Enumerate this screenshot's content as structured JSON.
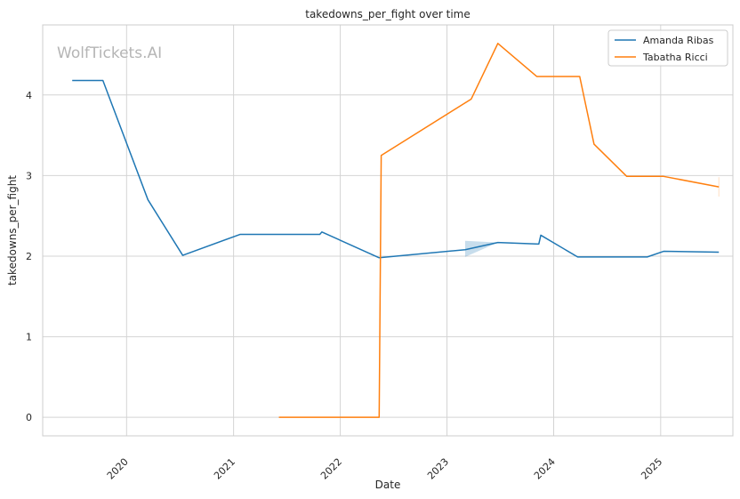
{
  "chart_data": {
    "type": "line",
    "title": "takedowns_per_fight over time",
    "xlabel": "Date",
    "ylabel": "takedowns_per_fight",
    "watermark": "WolfTickets.AI",
    "x_ticks": [
      "2020",
      "2021",
      "2022",
      "2023",
      "2024",
      "2025"
    ],
    "y_ticks": [
      0,
      1,
      2,
      3,
      4
    ],
    "xlim": [
      "2019-03-20",
      "2025-09-05"
    ],
    "ylim": [
      -0.23,
      4.87
    ],
    "grid": true,
    "legend_position": "top-right",
    "series": [
      {
        "name": "Amanda Ribas",
        "color": "#1f77b4",
        "points": [
          [
            "2019-06-29",
            4.18
          ],
          [
            "2019-10-12",
            4.18
          ],
          [
            "2020-03-14",
            2.7
          ],
          [
            "2020-07-11",
            2.01
          ],
          [
            "2021-01-23",
            2.27
          ],
          [
            "2021-10-23",
            2.27
          ],
          [
            "2021-10-30",
            2.3
          ],
          [
            "2022-05-14",
            1.98
          ],
          [
            "2023-03-04",
            2.08
          ],
          [
            "2023-06-24",
            2.17
          ],
          [
            "2023-11-11",
            2.15
          ],
          [
            "2023-11-18",
            2.26
          ],
          [
            "2024-03-23",
            1.99
          ],
          [
            "2024-11-16",
            1.99
          ],
          [
            "2025-01-11",
            2.06
          ],
          [
            "2025-07-19",
            2.05
          ]
        ],
        "band": [
          [
            "2023-03-04",
            1.99,
            2.19
          ],
          [
            "2023-06-24",
            2.17,
            2.17
          ]
        ]
      },
      {
        "name": "Tabatha Ricci",
        "color": "#ff7f0e",
        "points": [
          [
            "2021-06-05",
            0
          ],
          [
            "2022-05-14",
            0
          ],
          [
            "2022-05-21",
            3.25
          ],
          [
            "2023-03-25",
            3.95
          ],
          [
            "2023-06-24",
            4.64
          ],
          [
            "2023-11-04",
            4.23
          ],
          [
            "2024-03-30",
            4.23
          ],
          [
            "2024-05-18",
            3.39
          ],
          [
            "2024-09-07",
            2.99
          ],
          [
            "2025-01-11",
            2.99
          ],
          [
            "2025-07-19",
            2.86
          ]
        ],
        "band": [
          [
            "2025-07-19",
            2.74,
            2.98
          ]
        ]
      }
    ]
  }
}
